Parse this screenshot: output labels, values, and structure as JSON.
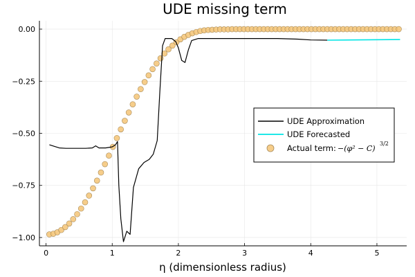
{
  "chart_data": {
    "type": "line",
    "title": "UDE missing term",
    "xlabel": "η (dimensionless radius)",
    "ylabel": "",
    "xlim": [
      -0.1,
      5.45
    ],
    "ylim": [
      -1.04,
      0.04
    ],
    "x_ticks": [
      0,
      1,
      2,
      3,
      4,
      5
    ],
    "x_tick_labels": [
      "0",
      "1",
      "2",
      "3",
      "4",
      "5"
    ],
    "y_ticks": [
      0,
      -0.25,
      -0.5,
      -0.75,
      -1.0
    ],
    "y_tick_labels": [
      "0.00",
      "−0.25",
      "−0.50",
      "−0.75",
      "−1.00"
    ],
    "grid": true,
    "legend_position": "right",
    "series": [
      {
        "name": "UDE Approximation",
        "style": "line",
        "color": "#000000",
        "points": [
          [
            0.05,
            -0.555
          ],
          [
            0.1,
            -0.56
          ],
          [
            0.2,
            -0.57
          ],
          [
            0.3,
            -0.572
          ],
          [
            0.4,
            -0.572
          ],
          [
            0.5,
            -0.572
          ],
          [
            0.6,
            -0.572
          ],
          [
            0.7,
            -0.57
          ],
          [
            0.75,
            -0.56
          ],
          [
            0.8,
            -0.57
          ],
          [
            0.9,
            -0.57
          ],
          [
            1.0,
            -0.565
          ],
          [
            1.05,
            -0.555
          ],
          [
            1.08,
            -0.54
          ],
          [
            1.1,
            -0.75
          ],
          [
            1.13,
            -0.91
          ],
          [
            1.17,
            -1.02
          ],
          [
            1.22,
            -0.97
          ],
          [
            1.27,
            -0.985
          ],
          [
            1.32,
            -0.76
          ],
          [
            1.4,
            -0.67
          ],
          [
            1.48,
            -0.64
          ],
          [
            1.56,
            -0.625
          ],
          [
            1.62,
            -0.6
          ],
          [
            1.68,
            -0.535
          ],
          [
            1.72,
            -0.3
          ],
          [
            1.76,
            -0.08
          ],
          [
            1.8,
            -0.045
          ],
          [
            1.9,
            -0.045
          ],
          [
            1.96,
            -0.06
          ],
          [
            2.0,
            -0.09
          ],
          [
            2.05,
            -0.15
          ],
          [
            2.1,
            -0.16
          ],
          [
            2.15,
            -0.1
          ],
          [
            2.2,
            -0.055
          ],
          [
            2.3,
            -0.045
          ],
          [
            2.5,
            -0.045
          ],
          [
            3.0,
            -0.045
          ],
          [
            3.5,
            -0.045
          ],
          [
            3.8,
            -0.048
          ],
          [
            4.0,
            -0.052
          ],
          [
            4.25,
            -0.053
          ]
        ]
      },
      {
        "name": "UDE Forecasted",
        "style": "line",
        "color": "#00e5e5",
        "points": [
          [
            4.25,
            -0.053
          ],
          [
            5.35,
            -0.05
          ]
        ]
      },
      {
        "name": "Actual term:",
        "style": "scatter",
        "color": "#f5c475",
        "edge_color": "#a88b5a",
        "equation": "−(φ² − C)",
        "equation_exponent": "3/2",
        "x": [
          0.05,
          0.11,
          0.17,
          0.23,
          0.29,
          0.35,
          0.41,
          0.47,
          0.53,
          0.59,
          0.65,
          0.71,
          0.77,
          0.83,
          0.89,
          0.95,
          1.01,
          1.07,
          1.13,
          1.19,
          1.25,
          1.31,
          1.37,
          1.43,
          1.49,
          1.55,
          1.61,
          1.67,
          1.73,
          1.79,
          1.85,
          1.91,
          1.97,
          2.03,
          2.09,
          2.15,
          2.21,
          2.27,
          2.33,
          2.39,
          2.45,
          2.51,
          2.57,
          2.63,
          2.69,
          2.75,
          2.81,
          2.87,
          2.93,
          2.99,
          3.05,
          3.11,
          3.17,
          3.23,
          3.29,
          3.35,
          3.41,
          3.47,
          3.53,
          3.59,
          3.65,
          3.71,
          3.77,
          3.83,
          3.89,
          3.95,
          4.01,
          4.07,
          4.13,
          4.19,
          4.25,
          4.31,
          4.37,
          4.43,
          4.49,
          4.55,
          4.61,
          4.67,
          4.73,
          4.79,
          4.85,
          4.91,
          4.97,
          5.03,
          5.09,
          5.15,
          5.21,
          5.27,
          5.33
        ],
        "y": [
          -0.985,
          -0.982,
          -0.975,
          -0.964,
          -0.95,
          -0.933,
          -0.912,
          -0.888,
          -0.861,
          -0.831,
          -0.799,
          -0.764,
          -0.727,
          -0.688,
          -0.648,
          -0.607,
          -0.565,
          -0.523,
          -0.481,
          -0.44,
          -0.4,
          -0.361,
          -0.324,
          -0.288,
          -0.254,
          -0.222,
          -0.192,
          -0.165,
          -0.14,
          -0.117,
          -0.097,
          -0.079,
          -0.063,
          -0.049,
          -0.037,
          -0.028,
          -0.02,
          -0.014,
          -0.009,
          -0.006,
          -0.004,
          -0.003,
          -0.002,
          -0.001,
          -0.001,
          -0.001,
          0,
          0,
          0,
          0,
          0,
          0,
          0,
          0,
          0,
          0,
          0,
          0,
          0,
          0,
          0,
          0,
          0,
          0,
          0,
          0,
          0,
          0,
          0,
          0,
          0,
          0,
          0,
          0,
          0,
          0,
          0,
          0,
          0,
          0,
          0,
          0,
          0,
          0,
          0,
          0,
          0,
          0,
          0
        ]
      }
    ]
  }
}
